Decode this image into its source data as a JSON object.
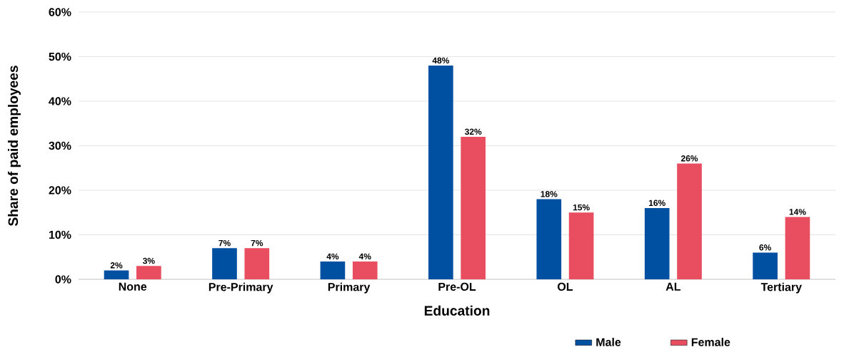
{
  "chart_data": {
    "type": "bar",
    "xlabel": "Education",
    "ylabel": "Share of paid employees",
    "categories": [
      "None",
      "Pre-Primary",
      "Primary",
      "Pre-OL",
      "OL",
      "AL",
      "Tertiary"
    ],
    "series": [
      {
        "name": "Male",
        "color": "#0050a2",
        "values": [
          2,
          7,
          4,
          48,
          18,
          16,
          6
        ],
        "value_labels": [
          "2%",
          "7%",
          "4%",
          "48%",
          "18%",
          "16%",
          "6%"
        ]
      },
      {
        "name": "Female",
        "color": "#e84e60",
        "values": [
          3,
          7,
          4,
          32,
          15,
          26,
          14
        ],
        "value_labels": [
          "3%",
          "7%",
          "4%",
          "32%",
          "15%",
          "26%",
          "14%"
        ]
      }
    ],
    "ylim": [
      0,
      60
    ],
    "yticks": [
      {
        "value": 0,
        "label": "0%"
      },
      {
        "value": 10,
        "label": "10%"
      },
      {
        "value": 20,
        "label": "20%"
      },
      {
        "value": 30,
        "label": "30%"
      },
      {
        "value": 40,
        "label": "40%"
      },
      {
        "value": 50,
        "label": "50%"
      },
      {
        "value": 60,
        "label": "60%"
      }
    ],
    "grid": "y",
    "legend": "bottom right"
  }
}
